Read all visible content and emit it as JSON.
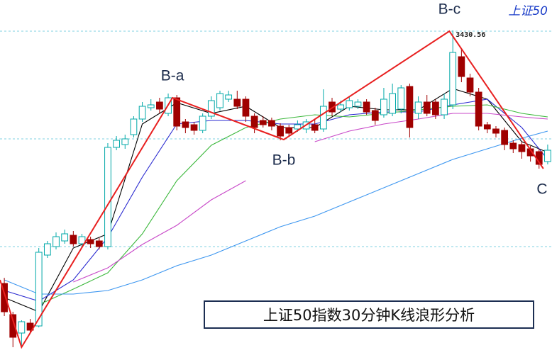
{
  "chart_data": {
    "type": "candlestick",
    "title": "上证50指数30分钟K线浪形分析",
    "corner_label": "上证50",
    "ylim": [
      3202,
      3452
    ],
    "grid_levels": [
      3430,
      3354,
      3278
    ],
    "up_color": "#00a8a8",
    "down_color": "#a00000",
    "open": [
      3252,
      3230,
      3217,
      3224,
      3222,
      3272,
      3278,
      3282,
      3286,
      3280,
      3283,
      3282,
      3278,
      3348,
      3350,
      3357,
      3368,
      3376,
      3380,
      3372,
      3383,
      3366,
      3364,
      3360,
      3370,
      3376,
      3382,
      3382,
      3382,
      3370,
      3367,
      3367,
      3363,
      3362,
      3361,
      3361,
      3364,
      3361,
      3380,
      3375,
      3376,
      3377,
      3380,
      3374,
      3371,
      3372,
      3375,
      3391,
      3372,
      3380,
      3380,
      3371,
      3378,
      3412,
      3397,
      3387,
      3364,
      3361,
      3360,
      3351,
      3350,
      3347,
      3345,
      3338
    ],
    "high": [
      3256,
      3232,
      3226,
      3227,
      3277,
      3282,
      3288,
      3290,
      3289,
      3287,
      3285,
      3284,
      3351,
      3356,
      3357,
      3370,
      3380,
      3382,
      3383,
      3386,
      3385,
      3368,
      3366,
      3372,
      3384,
      3388,
      3388,
      3388,
      3384,
      3372,
      3370,
      3369,
      3365,
      3364,
      3367,
      3368,
      3368,
      3389,
      3383,
      3381,
      3384,
      3382,
      3382,
      3376,
      3390,
      3393,
      3392,
      3393,
      3384,
      3385,
      3382,
      3386,
      3430.56,
      3418,
      3400,
      3390,
      3366,
      3363,
      3362,
      3353,
      3352,
      3349,
      3347,
      3350
    ],
    "low": [
      3229,
      3207,
      3207,
      3217,
      3221,
      3270,
      3276,
      3280,
      3278,
      3278,
      3277,
      3276,
      3276,
      3346,
      3347,
      3355,
      3366,
      3374,
      3372,
      3370,
      3360,
      3358,
      3357,
      3358,
      3368,
      3374,
      3380,
      3375,
      3366,
      3358,
      3362,
      3360,
      3353,
      3356,
      3359,
      3358,
      3358,
      3359,
      3370,
      3373,
      3374,
      3375,
      3371,
      3364,
      3369,
      3370,
      3372,
      3355,
      3368,
      3370,
      3368,
      3368,
      3375,
      3394,
      3384,
      3360,
      3358,
      3355,
      3346,
      3344,
      3340,
      3338,
      3333,
      3336
    ],
    "close": [
      3232,
      3214,
      3225,
      3219,
      3274,
      3280,
      3285,
      3287,
      3280,
      3285,
      3280,
      3278,
      3348,
      3353,
      3354,
      3368,
      3377,
      3378,
      3375,
      3383,
      3363,
      3362,
      3360,
      3370,
      3381,
      3386,
      3385,
      3377,
      3370,
      3362,
      3364,
      3363,
      3356,
      3358,
      3364,
      3366,
      3360,
      3377,
      3373,
      3378,
      3381,
      3380,
      3373,
      3367,
      3382,
      3386,
      3390,
      3362,
      3380,
      3372,
      3371,
      3382,
      3415,
      3398,
      3387,
      3363,
      3361,
      3358,
      3350,
      3347,
      3345,
      3342,
      3336,
      3346
    ],
    "ma_x": [
      0,
      4,
      8,
      12,
      16,
      20,
      24,
      28,
      32,
      36,
      40,
      44,
      48,
      52,
      56,
      60,
      63
    ],
    "series": [
      {
        "color": "#000000",
        "values": [
          3242,
          3232,
          3277,
          3287,
          3364.5,
          3379.5,
          3372,
          3377,
          3362,
          3362,
          3377,
          3374.5,
          3374.5,
          3389.5,
          3382,
          3352,
          3344.5
        ]
      },
      {
        "color": "#2a2ad0",
        "values": [
          3247,
          3239.5,
          3254.5,
          3284.5,
          3327,
          3364.5,
          3367,
          3367,
          3364.5,
          3364.5,
          3371,
          3373,
          3373,
          3378,
          3382,
          3362,
          3339.5
        ]
      },
      {
        "color": "#3cb83c",
        "values": [
          null,
          3237,
          3248,
          3259.5,
          3287,
          3324.5,
          3349.5,
          3362,
          3368,
          3371,
          3369.5,
          3372,
          3374.5,
          3377,
          3378,
          3372,
          3369.5
        ]
      },
      {
        "color": "#c848c8",
        "values": [
          null,
          null,
          3253,
          3263,
          3279.5,
          3293,
          3311,
          3324.5,
          null,
          3352,
          3359.5,
          3364.5,
          3368,
          3372,
          3372,
          3369.5,
          3368
        ]
      },
      {
        "color": "#3c96f0",
        "values": [
          3254.5,
          3244.5,
          3244.5,
          3247,
          3254.5,
          3264.5,
          3272,
          3282,
          3292,
          3299.5,
          3309.5,
          3319.5,
          3329.5,
          3339.5,
          3347,
          3354.5,
          3359.5
        ]
      }
    ],
    "wave_color": "#e82020",
    "waves": [
      {
        "index": -0.5,
        "value": 3254.5
      },
      {
        "index": 2,
        "value": 3207
      },
      {
        "label": "B-a",
        "index": 19.5,
        "value": 3383
      },
      {
        "label": "B-b",
        "index": 32.4,
        "value": 3353.5
      },
      {
        "label": "B-c",
        "index": 51.6,
        "value": 3430
      },
      {
        "label": "C",
        "index": 62.5,
        "value": 3333
      }
    ],
    "high_label_index": 52
  }
}
